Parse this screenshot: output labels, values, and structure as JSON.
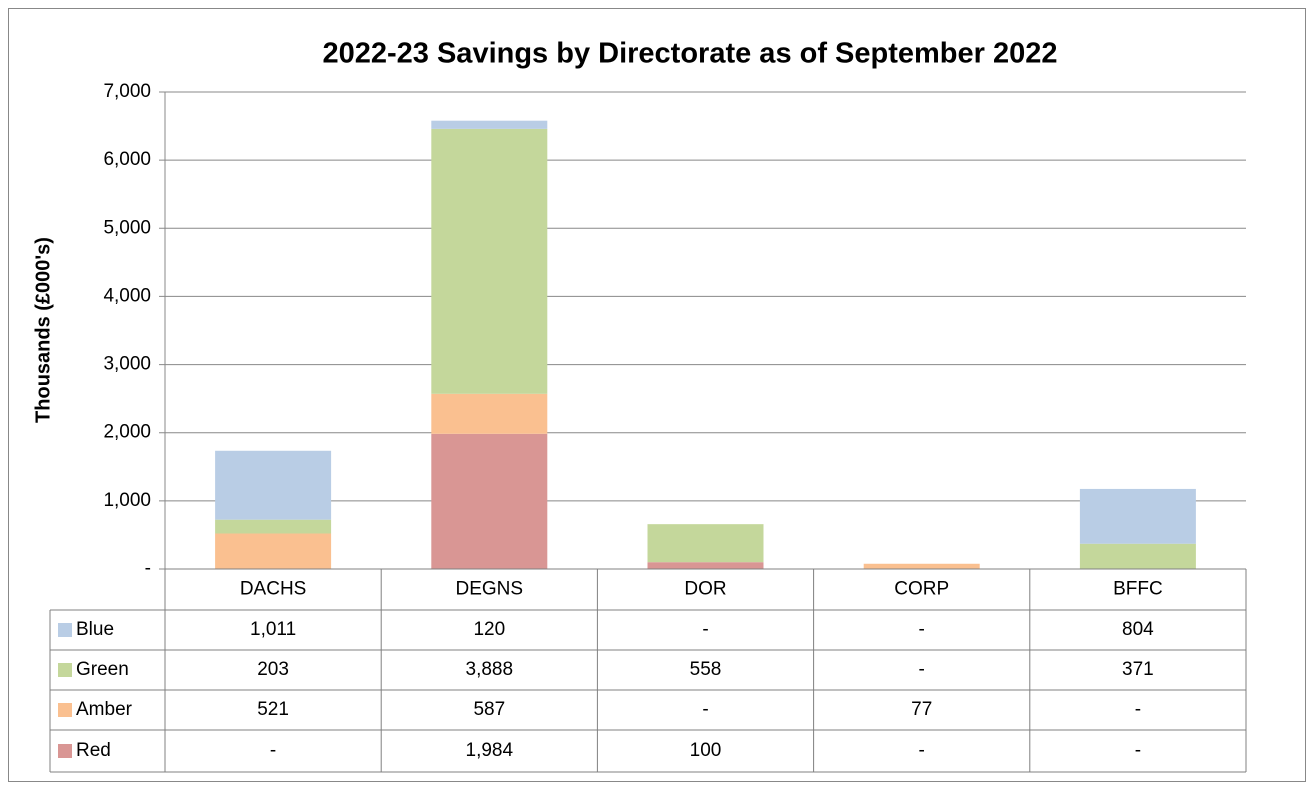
{
  "chart_data": {
    "type": "bar",
    "stacked": true,
    "title": "2022-23 Savings by Directorate as of September 2022",
    "y_label": "Thousands (£000's)",
    "categories": [
      "DACHS",
      "DEGNS",
      "DOR",
      "CORP",
      "BFFC"
    ],
    "series": [
      {
        "name": "Red",
        "color": "#d99694",
        "values": [
          0,
          1984,
          100,
          0,
          0
        ],
        "value_labels": [
          "-",
          "1,984",
          "100",
          "-",
          "-"
        ]
      },
      {
        "name": "Amber",
        "color": "#fac090",
        "values": [
          521,
          587,
          0,
          77,
          0
        ],
        "value_labels": [
          "521",
          "587",
          "-",
          "77",
          "-"
        ]
      },
      {
        "name": "Green",
        "color": "#c4d79b",
        "values": [
          203,
          3888,
          558,
          0,
          371
        ],
        "value_labels": [
          "203",
          "3,888",
          "558",
          "-",
          "371"
        ]
      },
      {
        "name": "Blue",
        "color": "#b9cde5",
        "values": [
          1011,
          120,
          0,
          0,
          804
        ],
        "value_labels": [
          "1,011",
          "120",
          "-",
          "-",
          "804"
        ]
      }
    ],
    "ylim": [
      0,
      7000
    ],
    "yticks": [
      {
        "value": 0,
        "label": "-"
      },
      {
        "value": 1000,
        "label": "1,000"
      },
      {
        "value": 2000,
        "label": "2,000"
      },
      {
        "value": 3000,
        "label": "3,000"
      },
      {
        "value": 4000,
        "label": "4,000"
      },
      {
        "value": 5000,
        "label": "5,000"
      },
      {
        "value": 6000,
        "label": "6,000"
      },
      {
        "value": 7000,
        "label": "7,000"
      }
    ],
    "grid": true
  }
}
